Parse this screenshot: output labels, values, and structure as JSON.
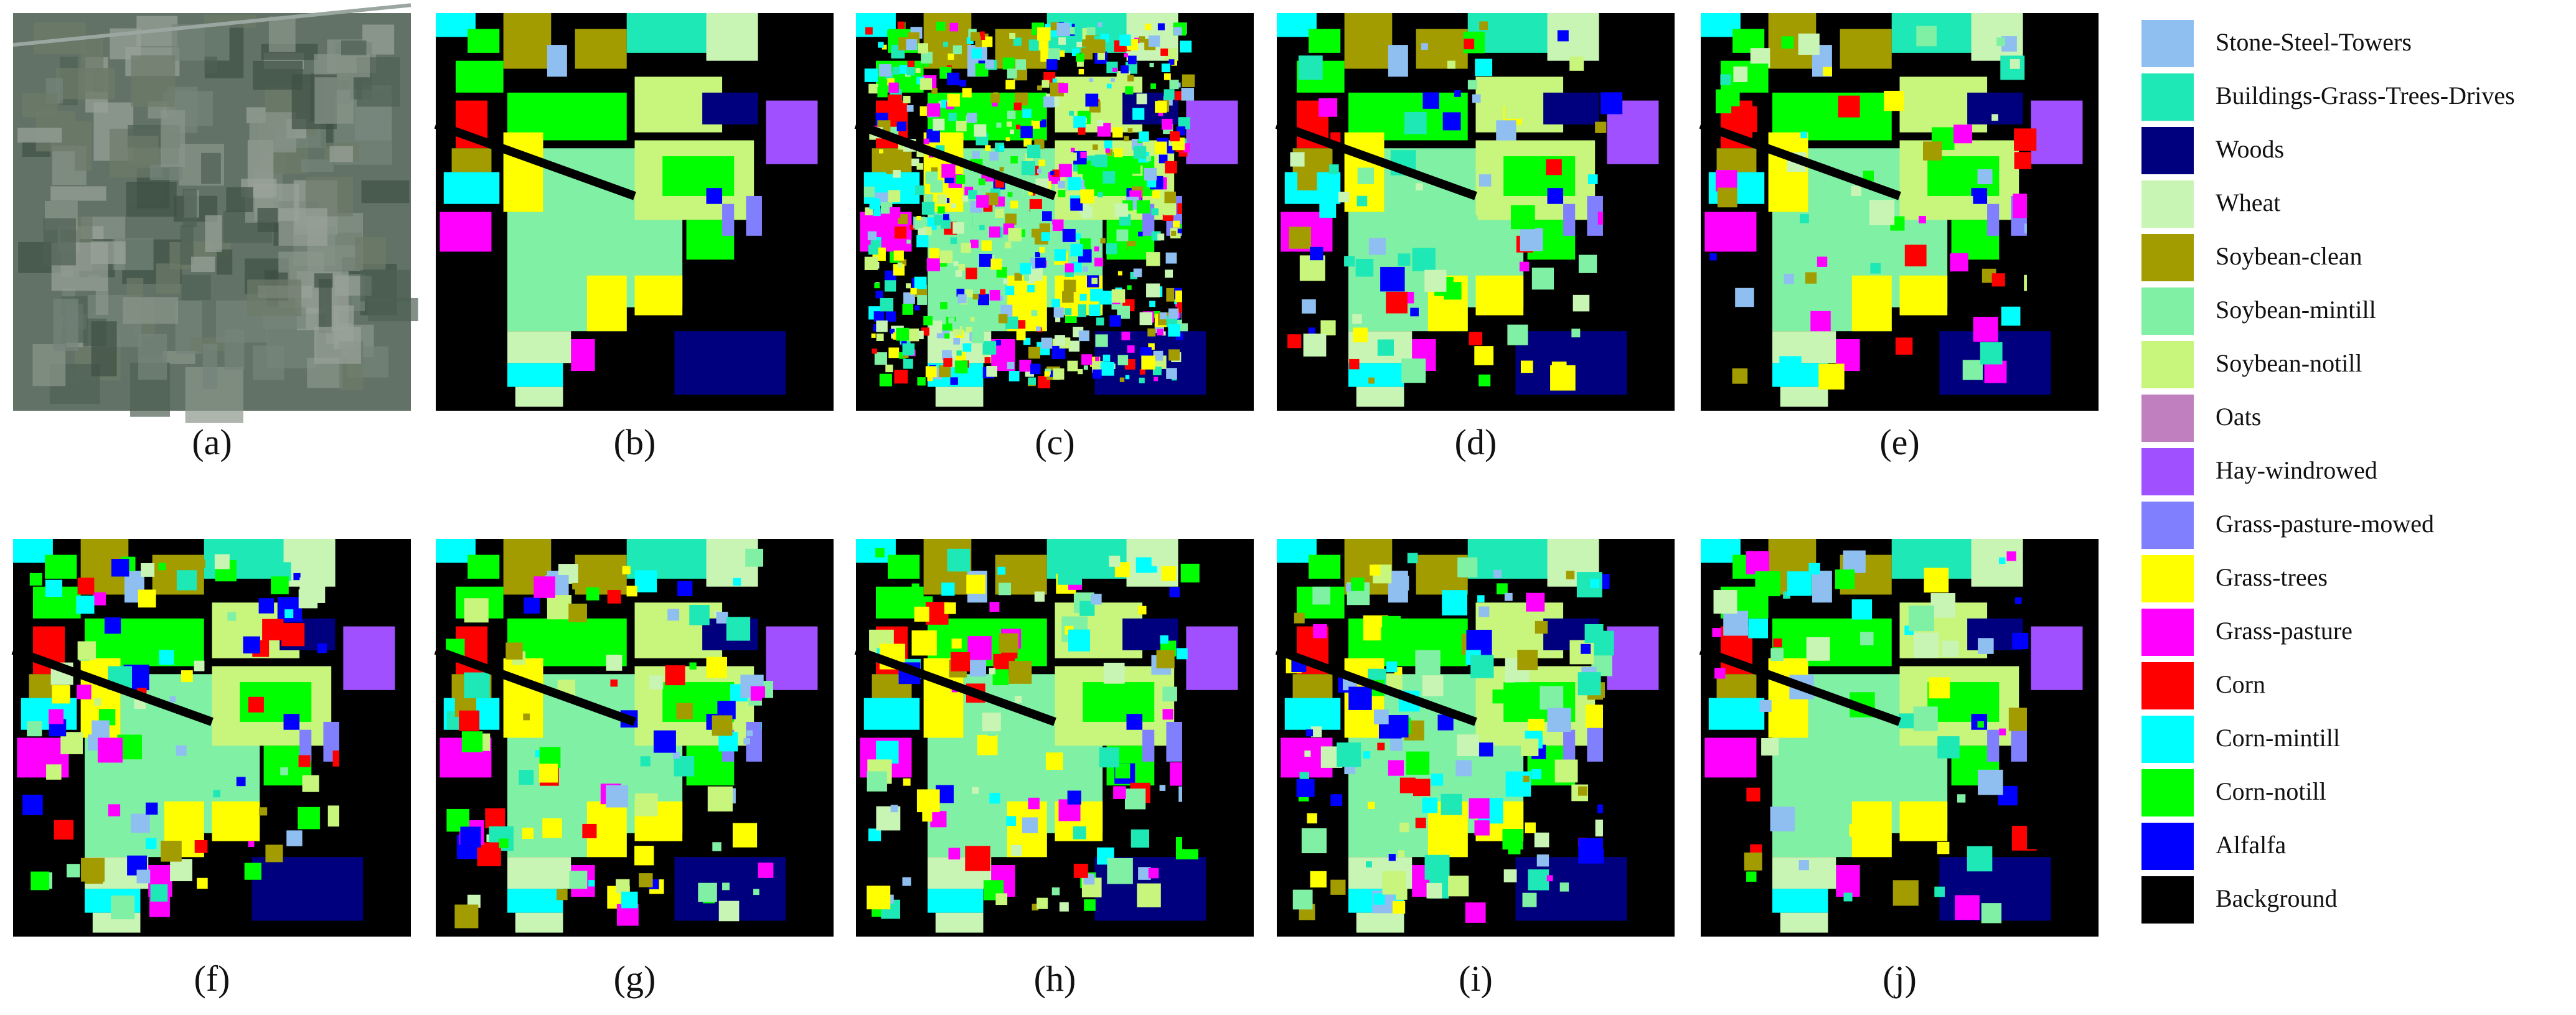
{
  "panels": [
    {
      "label": "(a)"
    },
    {
      "label": "(b)"
    },
    {
      "label": "(c)"
    },
    {
      "label": "(d)"
    },
    {
      "label": "(e)"
    },
    {
      "label": "(f)"
    },
    {
      "label": "(g)"
    },
    {
      "label": "(h)"
    },
    {
      "label": "(i)"
    },
    {
      "label": "(j)"
    }
  ],
  "legend": [
    {
      "name": "Stone-Steel-Towers",
      "color": "#8fbff0"
    },
    {
      "name": "Buildings-Grass-Trees-Drives",
      "color": "#1ee8b6"
    },
    {
      "name": "Woods",
      "color": "#00007f"
    },
    {
      "name": "Wheat",
      "color": "#c8f5b4"
    },
    {
      "name": "Soybean-clean",
      "color": "#a39c00"
    },
    {
      "name": "Soybean-mintill",
      "color": "#80f0a4"
    },
    {
      "name": "Soybean-notill",
      "color": "#c8f57c"
    },
    {
      "name": "Oats",
      "color": "#c080c0"
    },
    {
      "name": "Hay-windrowed",
      "color": "#a050ff"
    },
    {
      "name": "Grass-pasture-mowed",
      "color": "#8080ff"
    },
    {
      "name": "Grass-trees",
      "color": "#ffff00"
    },
    {
      "name": "Grass-pasture",
      "color": "#ff00ff"
    },
    {
      "name": "Corn",
      "color": "#ff0000"
    },
    {
      "name": "Corn-mintill",
      "color": "#00ffff"
    },
    {
      "name": "Corn-notill",
      "color": "#00ff00"
    },
    {
      "name": "Alfalfa",
      "color": "#0000ff"
    },
    {
      "name": "Background",
      "color": "#000000"
    }
  ]
}
